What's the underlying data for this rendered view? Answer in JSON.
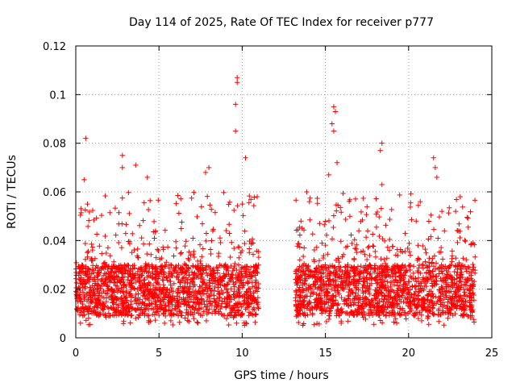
{
  "chart_data": {
    "type": "scatter",
    "title": "Day 114 of 2025, Rate Of TEC Index for receiver p777",
    "xlabel": "GPS time / hours",
    "ylabel": "ROTI / TECUs",
    "xlim": [
      0,
      25
    ],
    "ylim": [
      0,
      0.12
    ],
    "x_ticks": [
      0,
      5,
      10,
      15,
      20,
      25
    ],
    "y_ticks": [
      0,
      0.02,
      0.04,
      0.06,
      0.08,
      0.1,
      0.12
    ],
    "x_tick_labels": [
      "0",
      "5",
      "10",
      "15",
      "20",
      "25"
    ],
    "y_tick_labels": [
      "0",
      "0.02",
      "0.04",
      "0.06",
      "0.08",
      "0.1",
      "0.12"
    ],
    "grid": true,
    "marker": "+",
    "color": "#ff0000",
    "series": [
      {
        "name": "ROTI",
        "segments": [
          {
            "x_start": 0.0,
            "x_end": 11.0,
            "typical_range": [
              0.005,
              0.04
            ]
          },
          {
            "x_start": 13.2,
            "x_end": 24.0,
            "typical_range": [
              0.005,
              0.04
            ]
          }
        ],
        "notable_points": [
          {
            "x": 0.6,
            "y": 0.082
          },
          {
            "x": 0.5,
            "y": 0.065
          },
          {
            "x": 0.7,
            "y": 0.055
          },
          {
            "x": 2.8,
            "y": 0.075
          },
          {
            "x": 2.8,
            "y": 0.07
          },
          {
            "x": 3.6,
            "y": 0.071
          },
          {
            "x": 4.3,
            "y": 0.066
          },
          {
            "x": 7.8,
            "y": 0.068
          },
          {
            "x": 8.0,
            "y": 0.07
          },
          {
            "x": 9.7,
            "y": 0.107
          },
          {
            "x": 9.7,
            "y": 0.105
          },
          {
            "x": 9.6,
            "y": 0.096
          },
          {
            "x": 9.6,
            "y": 0.085
          },
          {
            "x": 10.2,
            "y": 0.074
          },
          {
            "x": 10.0,
            "y": 0.055
          },
          {
            "x": 10.9,
            "y": 0.058
          },
          {
            "x": 15.5,
            "y": 0.095
          },
          {
            "x": 15.6,
            "y": 0.093
          },
          {
            "x": 15.4,
            "y": 0.088
          },
          {
            "x": 15.5,
            "y": 0.085
          },
          {
            "x": 15.7,
            "y": 0.072
          },
          {
            "x": 15.2,
            "y": 0.067
          },
          {
            "x": 18.4,
            "y": 0.08
          },
          {
            "x": 18.3,
            "y": 0.077
          },
          {
            "x": 18.4,
            "y": 0.063
          },
          {
            "x": 21.5,
            "y": 0.074
          },
          {
            "x": 21.6,
            "y": 0.07
          },
          {
            "x": 21.7,
            "y": 0.066
          },
          {
            "x": 20.7,
            "y": 0.056
          },
          {
            "x": 22.0,
            "y": 0.052
          },
          {
            "x": 23.1,
            "y": 0.058
          }
        ]
      }
    ]
  }
}
